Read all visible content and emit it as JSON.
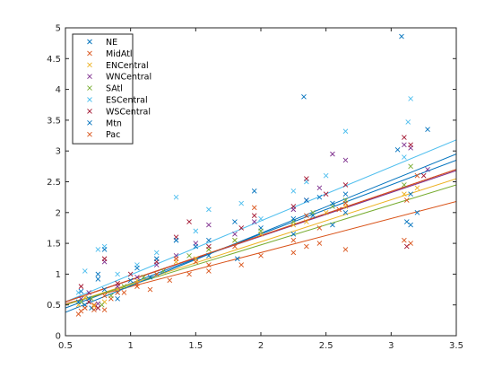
{
  "chart_data": {
    "type": "scatter",
    "title": "",
    "xlabel": "",
    "ylabel": "",
    "xlim": [
      0.5,
      3.5
    ],
    "ylim": [
      0,
      5
    ],
    "xticks": [
      0.5,
      1,
      1.5,
      2,
      2.5,
      3,
      3.5
    ],
    "yticks": [
      0,
      0.5,
      1,
      1.5,
      2,
      2.5,
      3,
      3.5,
      4,
      4.5,
      5
    ],
    "xtick_labels": [
      "0.5",
      "1",
      "1.5",
      "2",
      "2.5",
      "3",
      "3.5"
    ],
    "ytick_labels": [
      "0",
      "0.5",
      "1",
      "1.5",
      "2",
      "2.5",
      "3",
      "3.5",
      "4",
      "4.5",
      "5"
    ],
    "grid": false,
    "legend_position": "top-left",
    "marker": "x",
    "has_fit_lines": true,
    "series": [
      {
        "name": "NE",
        "color": "#0072BD",
        "fit": [
          [
            0.5,
            0.45
          ],
          [
            3.5,
            2.85
          ]
        ],
        "points": [
          [
            0.62,
            0.72
          ],
          [
            0.65,
            0.5
          ],
          [
            0.7,
            0.45
          ],
          [
            0.75,
            0.92
          ],
          [
            0.8,
            0.75
          ],
          [
            0.9,
            0.6
          ],
          [
            1.0,
            0.9
          ],
          [
            1.15,
            0.95
          ],
          [
            1.35,
            1.55
          ],
          [
            1.6,
            1.3
          ],
          [
            1.82,
            1.25
          ],
          [
            2.0,
            1.75
          ],
          [
            2.25,
            1.65
          ],
          [
            2.33,
            3.88
          ],
          [
            2.4,
            1.95
          ],
          [
            2.55,
            1.8
          ],
          [
            2.65,
            2.0
          ],
          [
            3.08,
            4.86
          ],
          [
            3.12,
            1.85
          ],
          [
            3.15,
            2.3
          ],
          [
            3.28,
            3.35
          ]
        ]
      },
      {
        "name": "MidAtl",
        "color": "#D95319",
        "fit": [
          [
            0.5,
            0.52
          ],
          [
            3.5,
            2.18
          ]
        ],
        "points": [
          [
            0.62,
            0.4
          ],
          [
            0.68,
            0.55
          ],
          [
            0.72,
            0.5
          ],
          [
            0.8,
            0.42
          ],
          [
            0.85,
            0.6
          ],
          [
            0.95,
            0.7
          ],
          [
            1.05,
            0.85
          ],
          [
            1.15,
            0.75
          ],
          [
            1.3,
            0.9
          ],
          [
            1.45,
            1.0
          ],
          [
            1.6,
            1.05
          ],
          [
            1.85,
            1.15
          ],
          [
            2.0,
            1.3
          ],
          [
            2.25,
            1.35
          ],
          [
            2.35,
            1.45
          ],
          [
            2.45,
            1.5
          ],
          [
            2.65,
            1.4
          ],
          [
            3.1,
            1.55
          ],
          [
            3.15,
            1.5
          ]
        ]
      },
      {
        "name": "ENCentral",
        "color": "#EDB120",
        "fit": [
          [
            0.5,
            0.5
          ],
          [
            3.5,
            2.55
          ]
        ],
        "points": [
          [
            0.6,
            0.5
          ],
          [
            0.65,
            0.62
          ],
          [
            0.72,
            0.48
          ],
          [
            0.8,
            0.55
          ],
          [
            0.9,
            0.75
          ],
          [
            1.05,
            0.9
          ],
          [
            1.2,
            1.0
          ],
          [
            1.35,
            1.2
          ],
          [
            1.5,
            1.25
          ],
          [
            1.6,
            1.4
          ],
          [
            1.8,
            1.55
          ],
          [
            2.0,
            1.65
          ],
          [
            2.25,
            1.8
          ],
          [
            2.35,
            1.85
          ],
          [
            2.5,
            2.0
          ],
          [
            2.65,
            2.1
          ],
          [
            3.1,
            2.3
          ],
          [
            3.2,
            2.4
          ]
        ]
      },
      {
        "name": "WNCentral",
        "color": "#7E2F8E",
        "fit": [
          [
            0.5,
            0.55
          ],
          [
            3.5,
            2.68
          ]
        ],
        "points": [
          [
            0.62,
            0.6
          ],
          [
            0.68,
            0.7
          ],
          [
            0.75,
            0.52
          ],
          [
            0.8,
            1.2
          ],
          [
            0.9,
            0.8
          ],
          [
            1.05,
            0.95
          ],
          [
            1.2,
            1.15
          ],
          [
            1.35,
            1.3
          ],
          [
            1.5,
            1.5
          ],
          [
            1.6,
            1.8
          ],
          [
            1.8,
            1.65
          ],
          [
            1.95,
            1.85
          ],
          [
            2.25,
            2.05
          ],
          [
            2.35,
            2.2
          ],
          [
            2.45,
            2.4
          ],
          [
            2.55,
            2.95
          ],
          [
            2.65,
            2.85
          ],
          [
            3.1,
            3.1
          ],
          [
            3.15,
            3.05
          ],
          [
            3.28,
            2.7
          ]
        ]
      },
      {
        "name": "SAtl",
        "color": "#77AC30",
        "fit": [
          [
            0.5,
            0.5
          ],
          [
            3.5,
            2.45
          ]
        ],
        "points": [
          [
            0.62,
            0.55
          ],
          [
            0.7,
            0.6
          ],
          [
            0.78,
            0.5
          ],
          [
            0.85,
            0.65
          ],
          [
            0.95,
            0.8
          ],
          [
            1.1,
            0.95
          ],
          [
            1.25,
            1.05
          ],
          [
            1.45,
            1.3
          ],
          [
            1.6,
            1.4
          ],
          [
            1.8,
            1.55
          ],
          [
            2.0,
            1.7
          ],
          [
            2.25,
            1.85
          ],
          [
            2.4,
            2.0
          ],
          [
            2.55,
            2.1
          ],
          [
            2.65,
            2.2
          ],
          [
            3.1,
            2.45
          ],
          [
            3.15,
            2.75
          ]
        ]
      },
      {
        "name": "ESCentral",
        "color": "#4DBEEE",
        "fit": [
          [
            0.5,
            0.55
          ],
          [
            3.5,
            3.18
          ]
        ],
        "points": [
          [
            0.6,
            0.7
          ],
          [
            0.65,
            1.05
          ],
          [
            0.75,
            1.4
          ],
          [
            0.8,
            1.45
          ],
          [
            0.9,
            1.0
          ],
          [
            1.05,
            1.15
          ],
          [
            1.2,
            1.35
          ],
          [
            1.35,
            2.25
          ],
          [
            1.5,
            1.7
          ],
          [
            1.6,
            2.05
          ],
          [
            1.85,
            2.15
          ],
          [
            2.0,
            1.9
          ],
          [
            2.25,
            2.35
          ],
          [
            2.35,
            2.5
          ],
          [
            2.5,
            2.6
          ],
          [
            2.65,
            3.32
          ],
          [
            3.1,
            2.9
          ],
          [
            3.15,
            3.85
          ],
          [
            3.13,
            3.47
          ]
        ]
      },
      {
        "name": "WSCentral",
        "color": "#A2142F",
        "fit": [
          [
            0.5,
            0.55
          ],
          [
            3.5,
            2.7
          ]
        ],
        "points": [
          [
            0.62,
            0.8
          ],
          [
            0.68,
            0.55
          ],
          [
            0.75,
            0.45
          ],
          [
            0.8,
            1.25
          ],
          [
            0.9,
            0.85
          ],
          [
            1.0,
            1.0
          ],
          [
            1.2,
            1.2
          ],
          [
            1.35,
            1.6
          ],
          [
            1.45,
            1.85
          ],
          [
            1.6,
            1.45
          ],
          [
            1.85,
            1.75
          ],
          [
            1.95,
            1.95
          ],
          [
            2.25,
            2.1
          ],
          [
            2.35,
            2.55
          ],
          [
            2.5,
            2.3
          ],
          [
            2.65,
            2.45
          ],
          [
            3.1,
            3.22
          ],
          [
            3.15,
            3.1
          ],
          [
            3.12,
            1.45
          ],
          [
            3.25,
            2.6
          ]
        ]
      },
      {
        "name": "Mtn",
        "color": "#0072BD",
        "fit": [
          [
            0.5,
            0.38
          ],
          [
            3.5,
            2.95
          ]
        ],
        "points": [
          [
            0.6,
            0.55
          ],
          [
            0.68,
            0.6
          ],
          [
            0.75,
            1.0
          ],
          [
            0.8,
            1.4
          ],
          [
            0.9,
            0.7
          ],
          [
            1.05,
            1.1
          ],
          [
            1.2,
            1.25
          ],
          [
            1.35,
            1.55
          ],
          [
            1.5,
            1.45
          ],
          [
            1.6,
            1.55
          ],
          [
            1.8,
            1.85
          ],
          [
            1.95,
            2.35
          ],
          [
            2.25,
            1.9
          ],
          [
            2.35,
            2.2
          ],
          [
            2.45,
            2.25
          ],
          [
            2.55,
            2.15
          ],
          [
            2.65,
            2.3
          ],
          [
            3.05,
            3.02
          ],
          [
            3.15,
            1.8
          ],
          [
            3.2,
            2.0
          ]
        ]
      },
      {
        "name": "Pac",
        "color": "#D95319",
        "fit": [
          [
            0.5,
            0.55
          ],
          [
            3.5,
            2.7
          ]
        ],
        "points": [
          [
            0.6,
            0.35
          ],
          [
            0.65,
            0.45
          ],
          [
            0.72,
            0.42
          ],
          [
            0.8,
            0.65
          ],
          [
            0.9,
            0.7
          ],
          [
            1.05,
            0.8
          ],
          [
            1.2,
            1.0
          ],
          [
            1.35,
            1.25
          ],
          [
            1.5,
            1.2
          ],
          [
            1.6,
            1.15
          ],
          [
            1.8,
            1.45
          ],
          [
            1.95,
            2.08
          ],
          [
            2.25,
            1.55
          ],
          [
            2.35,
            1.95
          ],
          [
            2.45,
            1.75
          ],
          [
            2.6,
            2.05
          ],
          [
            2.65,
            2.15
          ],
          [
            3.12,
            2.2
          ],
          [
            3.2,
            2.6
          ]
        ]
      }
    ]
  }
}
